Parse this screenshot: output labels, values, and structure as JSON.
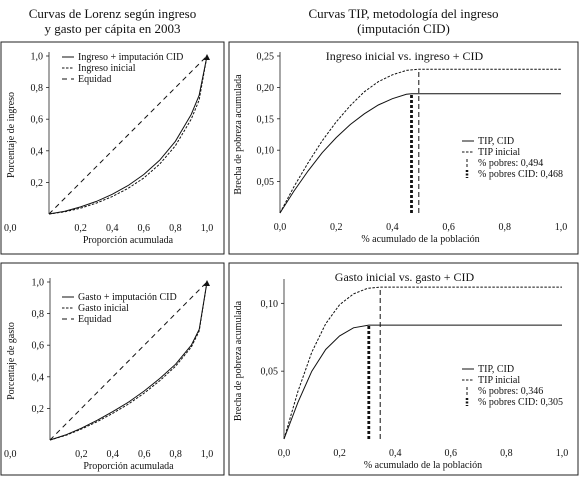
{
  "headings": {
    "left": [
      "Curvas de Lorenz según ingreso",
      "y gasto per cápita en 2003"
    ],
    "right": [
      "Curvas TIP, metodología del ingreso",
      "(imputación CID)"
    ]
  },
  "chart_data": [
    {
      "id": "lorenz-income",
      "type": "line",
      "title": "",
      "xlabel": "Proporción acumulada",
      "ylabel": "Porcentaje de ingreso",
      "xlim": [
        0,
        1
      ],
      "ylim": [
        0,
        1
      ],
      "xticks": [
        "0,2",
        "0,4",
        "0,6",
        "0,8",
        "1,0"
      ],
      "yticks": [
        "0,2",
        "0,4",
        "0,6",
        "0,8",
        "1,0"
      ],
      "origin_label": "0,0",
      "legend_position": "top-left",
      "series": [
        {
          "name": "Ingreso + imputación CID",
          "style": "solid",
          "x": [
            0,
            0.1,
            0.2,
            0.3,
            0.4,
            0.5,
            0.6,
            0.7,
            0.8,
            0.9,
            0.95,
            1.0
          ],
          "y": [
            0,
            0.018,
            0.045,
            0.08,
            0.125,
            0.18,
            0.25,
            0.34,
            0.46,
            0.63,
            0.75,
            1.0
          ]
        },
        {
          "name": "Ingreso inicial",
          "style": "dotted",
          "x": [
            0,
            0.1,
            0.2,
            0.3,
            0.4,
            0.5,
            0.6,
            0.7,
            0.8,
            0.9,
            0.95,
            1.0
          ],
          "y": [
            0,
            0.014,
            0.037,
            0.069,
            0.11,
            0.162,
            0.228,
            0.315,
            0.432,
            0.6,
            0.72,
            1.0
          ]
        },
        {
          "name": "Equidad",
          "style": "dashed",
          "x": [
            0,
            1.0
          ],
          "y": [
            0,
            1.0
          ]
        }
      ]
    },
    {
      "id": "tip-income",
      "type": "line",
      "title": "Ingreso inicial vs. ingreso + CID",
      "xlabel": "% acumulado de la población",
      "ylabel": "Brecha de pobreza acumulada",
      "xlim": [
        0,
        1
      ],
      "ylim": [
        0,
        0.25
      ],
      "xticks": [
        "0,0",
        "0,2",
        "0,4",
        "0,6",
        "0,8",
        "1,0"
      ],
      "yticks": [
        "0,05",
        "0,10",
        "0,15",
        "0,20",
        "0,25"
      ],
      "legend_position": "right",
      "series": [
        {
          "name": "TIP, CID",
          "style": "solid",
          "x": [
            0,
            0.05,
            0.1,
            0.15,
            0.2,
            0.25,
            0.3,
            0.35,
            0.4,
            0.45,
            0.468,
            1.0
          ],
          "y": [
            0,
            0.035,
            0.067,
            0.096,
            0.12,
            0.141,
            0.158,
            0.172,
            0.182,
            0.189,
            0.19,
            0.19
          ]
        },
        {
          "name": "TIP inicial",
          "style": "dotted",
          "x": [
            0,
            0.05,
            0.1,
            0.15,
            0.2,
            0.25,
            0.3,
            0.35,
            0.4,
            0.45,
            0.494,
            1.0
          ],
          "y": [
            0,
            0.042,
            0.08,
            0.115,
            0.145,
            0.171,
            0.193,
            0.209,
            0.22,
            0.227,
            0.229,
            0.229
          ]
        },
        {
          "name": "% pobres: 0,494",
          "style": "dashed-vertical",
          "x": [
            0.494,
            0.494
          ],
          "y": [
            0,
            0.229
          ]
        },
        {
          "name": "% pobres CID: 0,468",
          "style": "thick-dashed-vertical",
          "x": [
            0.468,
            0.468
          ],
          "y": [
            0,
            0.19
          ]
        }
      ]
    },
    {
      "id": "lorenz-expense",
      "type": "line",
      "title": "",
      "xlabel": "Proporción acumulada",
      "ylabel": "Porcentaje de gasto",
      "xlim": [
        0,
        1
      ],
      "ylim": [
        0,
        1
      ],
      "xticks": [
        "0,2",
        "0,4",
        "0,6",
        "0,8",
        "1,0"
      ],
      "yticks": [
        "0,2",
        "0,4",
        "0,6",
        "0,8",
        "1,0"
      ],
      "origin_label": "0,0",
      "legend_position": "top-left",
      "series": [
        {
          "name": "Gasto + imputación CID",
          "style": "solid",
          "x": [
            0,
            0.1,
            0.2,
            0.3,
            0.4,
            0.5,
            0.6,
            0.7,
            0.8,
            0.9,
            0.95,
            1.0
          ],
          "y": [
            0,
            0.032,
            0.075,
            0.125,
            0.18,
            0.24,
            0.31,
            0.39,
            0.48,
            0.6,
            0.7,
            1.0
          ]
        },
        {
          "name": "Gasto inicial",
          "style": "dotted",
          "x": [
            0,
            0.1,
            0.2,
            0.3,
            0.4,
            0.5,
            0.6,
            0.7,
            0.8,
            0.9,
            0.95,
            1.0
          ],
          "y": [
            0,
            0.029,
            0.069,
            0.116,
            0.169,
            0.228,
            0.297,
            0.376,
            0.467,
            0.588,
            0.69,
            1.0
          ]
        },
        {
          "name": "Equidad",
          "style": "dashed",
          "x": [
            0,
            1.0
          ],
          "y": [
            0,
            1.0
          ]
        }
      ]
    },
    {
      "id": "tip-expense",
      "type": "line",
      "title": "Gasto inicial vs. gasto + CID",
      "xlabel": "% acumulado de la población",
      "ylabel": "Brecha de pobreza acumulada",
      "xlim": [
        0,
        1
      ],
      "ylim": [
        0,
        0.115
      ],
      "xticks": [
        "0,0",
        "0,2",
        "0,4",
        "0,6",
        "0,8",
        "1,0"
      ],
      "yticks": [
        "0,05",
        "0,10"
      ],
      "legend_position": "right",
      "series": [
        {
          "name": "TIP, CID",
          "style": "solid",
          "x": [
            0,
            0.05,
            0.1,
            0.15,
            0.2,
            0.25,
            0.305,
            1.0
          ],
          "y": [
            0,
            0.027,
            0.05,
            0.066,
            0.076,
            0.082,
            0.084,
            0.084
          ]
        },
        {
          "name": "TIP inicial",
          "style": "dotted",
          "x": [
            0,
            0.05,
            0.1,
            0.15,
            0.2,
            0.25,
            0.3,
            0.346,
            1.0
          ],
          "y": [
            0,
            0.035,
            0.064,
            0.085,
            0.099,
            0.107,
            0.111,
            0.112,
            0.112
          ]
        },
        {
          "name": "% pobres: 0,346",
          "style": "dashed-vertical",
          "x": [
            0.346,
            0.346
          ],
          "y": [
            0,
            0.112
          ]
        },
        {
          "name": "% pobres CID: 0,305",
          "style": "thick-dashed-vertical",
          "x": [
            0.305,
            0.305
          ],
          "y": [
            0,
            0.084
          ]
        }
      ]
    }
  ]
}
